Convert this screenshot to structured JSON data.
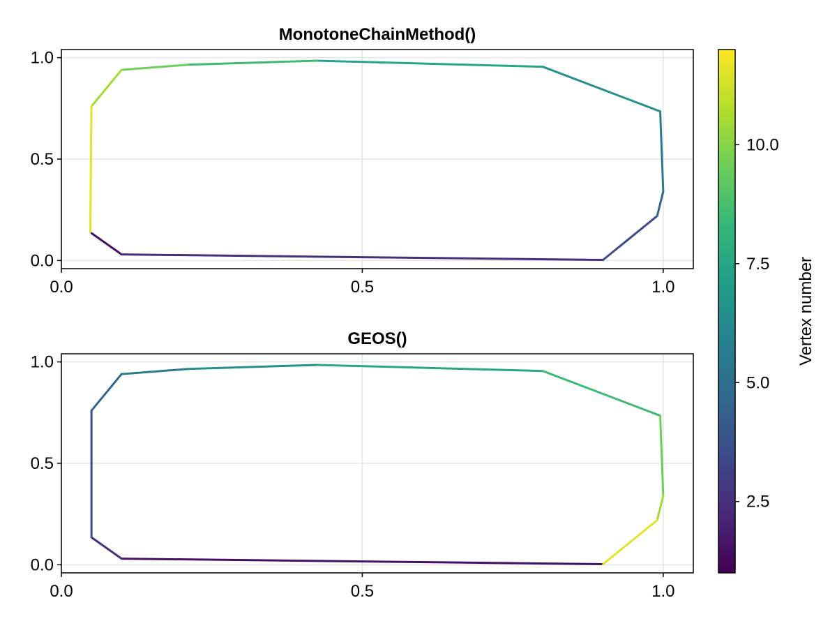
{
  "chart_data": [
    {
      "type": "line",
      "title": "MonotoneChainMethod()",
      "xlabel": "",
      "ylabel": "",
      "xlim": [
        0.0,
        1.05
      ],
      "ylim": [
        -0.04,
        1.04
      ],
      "xticks": [
        "0.0",
        "0.5",
        "1.0"
      ],
      "yticks": [
        "0.0",
        "0.5",
        "1.0"
      ],
      "grid": true,
      "color_by": "vertex number",
      "x": [
        0.05,
        0.1,
        0.9,
        0.99,
        1.0,
        0.995,
        0.8,
        0.425,
        0.21,
        0.1,
        0.05,
        0.048
      ],
      "y": [
        0.135,
        0.03,
        0.003,
        0.22,
        0.34,
        0.735,
        0.955,
        0.985,
        0.965,
        0.94,
        0.76,
        0.14
      ],
      "vertex_number": [
        1,
        2,
        3,
        4,
        5,
        6,
        7,
        8,
        9,
        10,
        11,
        12
      ]
    },
    {
      "type": "line",
      "title": "GEOS()",
      "xlabel": "",
      "ylabel": "",
      "xlim": [
        0.0,
        1.05
      ],
      "ylim": [
        -0.04,
        1.04
      ],
      "xticks": [
        "0.0",
        "0.5",
        "1.0"
      ],
      "yticks": [
        "0.0",
        "0.5",
        "1.0"
      ],
      "grid": true,
      "color_by": "vertex number",
      "x": [
        0.9,
        0.1,
        0.05,
        0.05,
        0.1,
        0.21,
        0.425,
        0.8,
        0.995,
        1.0,
        0.99,
        0.9
      ],
      "y": [
        0.003,
        0.03,
        0.135,
        0.76,
        0.94,
        0.965,
        0.985,
        0.955,
        0.735,
        0.34,
        0.22,
        0.003
      ],
      "vertex_number": [
        1,
        2,
        3,
        4,
        5,
        6,
        7,
        8,
        9,
        10,
        11,
        12
      ]
    }
  ],
  "colorbar": {
    "label": "Vertex number",
    "range": [
      1,
      12
    ],
    "ticks": [
      2.5,
      5.0,
      7.5,
      10.0
    ],
    "tick_labels": [
      "2.5",
      "5.0",
      "7.5",
      "10.0"
    ],
    "colormap": "viridis",
    "stops": [
      "#440154",
      "#482878",
      "#3e4989",
      "#31688e",
      "#26828e",
      "#1f9e89",
      "#35b779",
      "#6ece58",
      "#b5de2b",
      "#fde725"
    ]
  }
}
